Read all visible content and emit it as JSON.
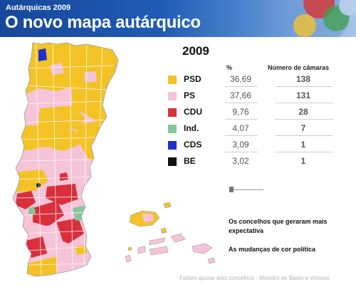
{
  "header": {
    "kicker": "Autárquicas 2009",
    "title": "O novo mapa autárquico"
  },
  "table": {
    "year": "2009",
    "col_pct": "%",
    "col_camaras": "Número de câmaras",
    "rows": [
      {
        "party": "PSD",
        "pct": "36,69",
        "camaras": "138",
        "color": "#f3c326"
      },
      {
        "party": "PS",
        "pct": "37,66",
        "camaras": "131",
        "color": "#f6c4d8"
      },
      {
        "party": "CDU",
        "pct": "9,76",
        "camaras": "28",
        "color": "#d92f3c"
      },
      {
        "party": "Ind.",
        "pct": "4,07",
        "camaras": "7",
        "color": "#86c79a"
      },
      {
        "party": "CDS",
        "pct": "3,09",
        "camaras": "1",
        "color": "#1d2fd0"
      },
      {
        "party": "BE",
        "pct": "3,02",
        "camaras": "1",
        "color": "#111111"
      }
    ]
  },
  "links": {
    "expectativa": "Os concelhos que geraram mais expectativa",
    "mudancas": "As mudanças de cor política"
  },
  "footnote": "Faltam apurar dois concelhos - Mondim de Basto e Vimioso",
  "map": {
    "colors": {
      "border": "#9a9a9a",
      "gap": "#ffffff"
    }
  }
}
